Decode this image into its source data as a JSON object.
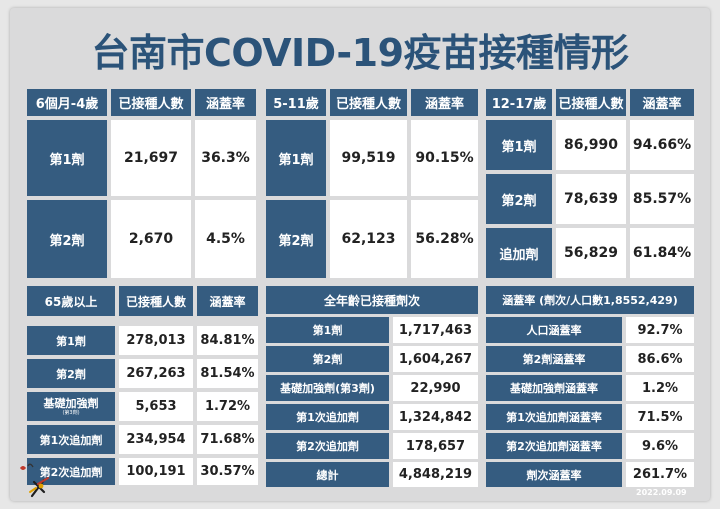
{
  "title": "台南市COVID-19疫苗接種情形",
  "date": "2022.09.09",
  "colors": {
    "header": "#355c80",
    "title": "#2b5379",
    "cell": "#ffffff",
    "background": "#dadadb"
  },
  "table_6m_4y": {
    "header": [
      "6個月-4歲",
      "已接種人數",
      "涵蓋率"
    ],
    "rows": [
      {
        "dose": "第1劑",
        "count": "21,697",
        "rate": "36.3%"
      },
      {
        "dose": "第2劑",
        "count": "2,670",
        "rate": "4.5%"
      }
    ]
  },
  "table_5_11": {
    "header": [
      "5-11歲",
      "已接種人數",
      "涵蓋率"
    ],
    "rows": [
      {
        "dose": "第1劑",
        "count": "99,519",
        "rate": "90.15%"
      },
      {
        "dose": "第2劑",
        "count": "62,123",
        "rate": "56.28%"
      }
    ]
  },
  "table_12_17": {
    "header": [
      "12-17歲",
      "已接種人數",
      "涵蓋率"
    ],
    "rows": [
      {
        "dose": "第1劑",
        "count": "86,990",
        "rate": "94.66%"
      },
      {
        "dose": "第2劑",
        "count": "78,639",
        "rate": "85.57%"
      },
      {
        "dose": "追加劑",
        "count": "56,829",
        "rate": "61.84%"
      }
    ]
  },
  "table_65plus": {
    "header": [
      "65歲以上",
      "已接種人數",
      "涵蓋率"
    ],
    "rows": [
      {
        "dose": "第1劑",
        "count": "278,013",
        "rate": "84.81%"
      },
      {
        "dose": "第2劑",
        "count": "267,263",
        "rate": "81.54%"
      },
      {
        "dose": "基礎加強劑",
        "dose_note": "(第3劑)",
        "count": "5,653",
        "rate": "1.72%"
      },
      {
        "dose": "第1次追加劑",
        "count": "234,954",
        "rate": "71.68%"
      },
      {
        "dose": "第2次追加劑",
        "count": "100,191",
        "rate": "30.57%"
      }
    ]
  },
  "table_all_doses": {
    "header": "全年齡已接種劑次",
    "rows": [
      {
        "dose": "第1劑",
        "count": "1,717,463"
      },
      {
        "dose": "第2劑",
        "count": "1,604,267"
      },
      {
        "dose": "基礎加強劑(第3劑)",
        "count": "22,990"
      },
      {
        "dose": "第1次追加劑",
        "count": "1,324,842"
      },
      {
        "dose": "第2次追加劑",
        "count": "178,657"
      },
      {
        "dose": "總計",
        "count": "4,848,219"
      }
    ]
  },
  "table_coverage": {
    "header": "涵蓋率 (劑次/人口數1,8552,429)",
    "rows": [
      {
        "label": "人口涵蓋率",
        "rate": "92.7%"
      },
      {
        "label": "第2劑涵蓋率",
        "rate": "86.6%"
      },
      {
        "label": "基礎加強劑涵蓋率",
        "rate": "1.2%"
      },
      {
        "label": "第1次追加劑涵蓋率",
        "rate": "71.5%"
      },
      {
        "label": "第2次追加劑涵蓋率",
        "rate": "9.6%"
      },
      {
        "label": "劑次涵蓋率",
        "rate": "261.7%"
      }
    ]
  }
}
